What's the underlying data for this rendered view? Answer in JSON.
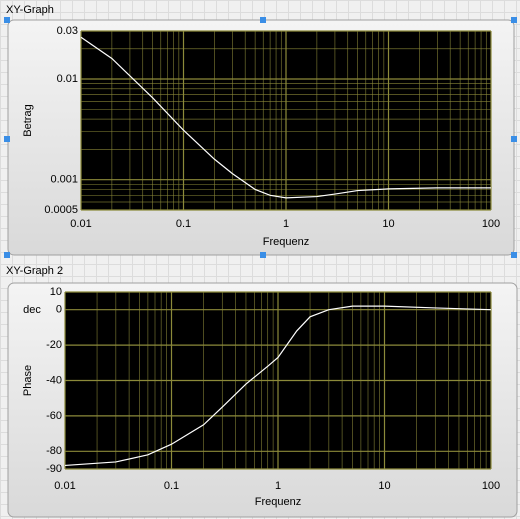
{
  "chart_data": [
    {
      "type": "line",
      "title": "XY-Graph",
      "xlabel": "Frequenz",
      "ylabel": "Betrag",
      "xlog": true,
      "ylog": true,
      "grid": true,
      "xlim": [
        0.01,
        100
      ],
      "ylim": [
        0.0005,
        0.03
      ],
      "xticks": [
        0.01,
        0.1,
        1,
        10,
        100
      ],
      "yticks": [
        0.0005,
        0.001,
        0.01,
        0.03
      ],
      "series": [
        {
          "color": "#ffffff",
          "x": [
            0.01,
            0.02,
            0.05,
            0.1,
            0.2,
            0.3,
            0.5,
            0.7,
            1,
            2,
            3,
            5,
            10,
            30,
            100
          ],
          "values": [
            0.026,
            0.016,
            0.0065,
            0.0031,
            0.0016,
            0.00115,
            0.0008,
            0.0007,
            0.00066,
            0.00068,
            0.00072,
            0.00078,
            0.00081,
            0.00083,
            0.00083
          ]
        }
      ]
    },
    {
      "type": "line",
      "title": "XY-Graph 2",
      "xlabel": "Frequenz",
      "ylabel": "Phase",
      "unit_label": "dec",
      "xlog": true,
      "ylog": false,
      "grid": true,
      "xlim": [
        0.01,
        100
      ],
      "ylim": [
        -90,
        10
      ],
      "xticks": [
        0.01,
        0.1,
        1,
        10,
        100
      ],
      "yticks": [
        10,
        0,
        -20,
        -40,
        -60,
        -80,
        -90
      ],
      "series": [
        {
          "color": "#ffffff",
          "x": [
            0.01,
            0.03,
            0.06,
            0.1,
            0.2,
            0.3,
            0.5,
            0.8,
            1,
            1.5,
            2,
            3,
            5,
            10,
            30,
            100
          ],
          "values": [
            -88,
            -86,
            -82,
            -76,
            -65,
            -55,
            -42,
            -32,
            -27,
            -12,
            -4,
            0,
            2,
            2,
            1,
            0
          ]
        }
      ]
    }
  ]
}
